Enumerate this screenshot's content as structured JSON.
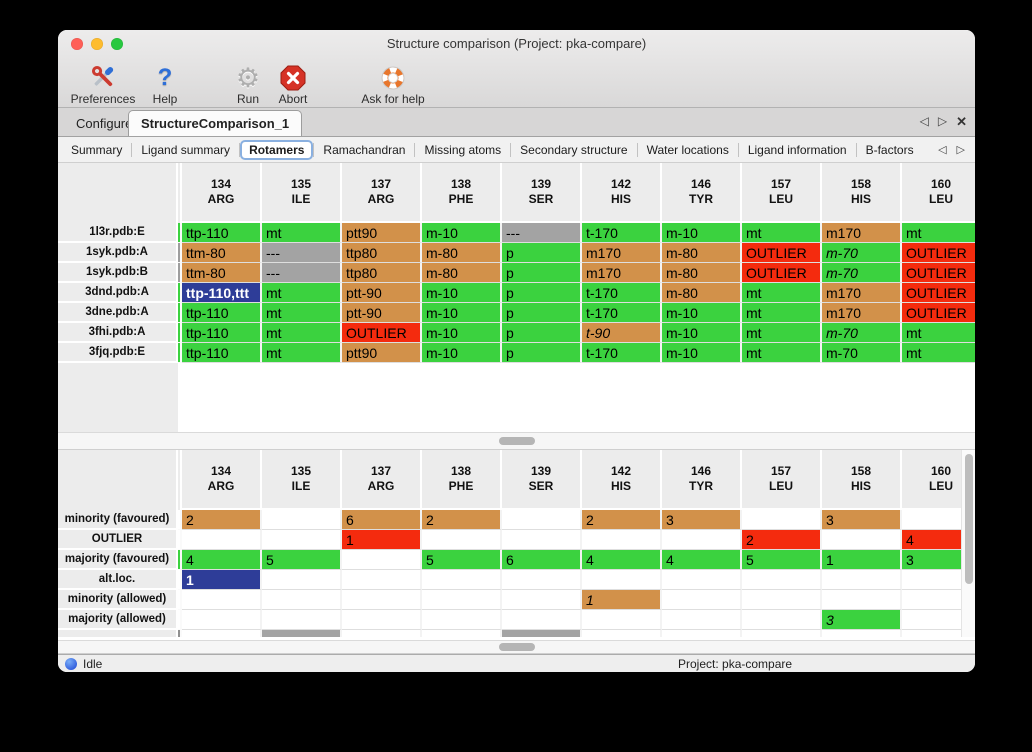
{
  "window": {
    "title": "Structure comparison (Project: pka-compare)"
  },
  "toolbar": {
    "items": [
      {
        "label": "Preferences",
        "icon": "tools-icon"
      },
      {
        "label": "Help",
        "icon": "question-icon"
      },
      {
        "label": "Run",
        "icon": "gear-icon"
      },
      {
        "label": "Abort",
        "icon": "stop-icon"
      },
      {
        "label": "Ask for help",
        "icon": "lifebuoy-icon"
      }
    ]
  },
  "tabs": {
    "items": [
      {
        "label": "Configure"
      },
      {
        "label": "StructureComparison_1"
      }
    ],
    "selected_index": 1,
    "prev_icon": "◁",
    "next_icon": "▷",
    "close_icon": "✕"
  },
  "subtabs": {
    "items": [
      "Summary",
      "Ligand summary",
      "Rotamers",
      "Ramachandran",
      "Missing atoms",
      "Secondary structure",
      "Water locations",
      "Ligand information",
      "B-factors"
    ],
    "selected_index": 2,
    "prev_icon": "◁",
    "next_icon": "▷"
  },
  "columns": [
    {
      "num": "134",
      "res": "ARG"
    },
    {
      "num": "135",
      "res": "ILE"
    },
    {
      "num": "137",
      "res": "ARG"
    },
    {
      "num": "138",
      "res": "PHE"
    },
    {
      "num": "139",
      "res": "SER"
    },
    {
      "num": "142",
      "res": "HIS"
    },
    {
      "num": "146",
      "res": "TYR"
    },
    {
      "num": "157",
      "res": "LEU"
    },
    {
      "num": "158",
      "res": "HIS"
    },
    {
      "num": "160",
      "res": "LEU"
    }
  ],
  "top_table": {
    "rows": [
      {
        "label": "1l3r.pdb:E",
        "strip": "green",
        "cells": [
          {
            "t": "ttp-110",
            "c": "green"
          },
          {
            "t": "mt",
            "c": "green"
          },
          {
            "t": "ptt90",
            "c": "tan"
          },
          {
            "t": "m-10",
            "c": "green"
          },
          {
            "t": "---",
            "c": "gray"
          },
          {
            "t": "t-170",
            "c": "green"
          },
          {
            "t": "m-10",
            "c": "green"
          },
          {
            "t": "mt",
            "c": "green"
          },
          {
            "t": "m170",
            "c": "tan"
          },
          {
            "t": "mt",
            "c": "green"
          }
        ]
      },
      {
        "label": "1syk.pdb:A",
        "strip": "gray",
        "cells": [
          {
            "t": "ttm-80",
            "c": "tan"
          },
          {
            "t": "---",
            "c": "gray"
          },
          {
            "t": "ttp80",
            "c": "tan"
          },
          {
            "t": "m-80",
            "c": "tan"
          },
          {
            "t": "p",
            "c": "green"
          },
          {
            "t": "m170",
            "c": "tan"
          },
          {
            "t": "m-80",
            "c": "tan"
          },
          {
            "t": "OUTLIER",
            "c": "red"
          },
          {
            "t": "m-70",
            "c": "green",
            "i": true
          },
          {
            "t": "OUTLIER",
            "c": "red"
          }
        ]
      },
      {
        "label": "1syk.pdb:B",
        "strip": "gray",
        "cells": [
          {
            "t": "ttm-80",
            "c": "tan"
          },
          {
            "t": "---",
            "c": "gray"
          },
          {
            "t": "ttp80",
            "c": "tan"
          },
          {
            "t": "m-80",
            "c": "tan"
          },
          {
            "t": "p",
            "c": "green"
          },
          {
            "t": "m170",
            "c": "tan"
          },
          {
            "t": "m-80",
            "c": "tan"
          },
          {
            "t": "OUTLIER",
            "c": "red"
          },
          {
            "t": "m-70",
            "c": "green",
            "i": true
          },
          {
            "t": "OUTLIER",
            "c": "red"
          }
        ]
      },
      {
        "label": "3dnd.pdb:A",
        "strip": "green",
        "cells": [
          {
            "t": "ttp-110,ttt",
            "c": "blue",
            "sel": true
          },
          {
            "t": "mt",
            "c": "green"
          },
          {
            "t": "ptt-90",
            "c": "tan"
          },
          {
            "t": "m-10",
            "c": "green"
          },
          {
            "t": "p",
            "c": "green"
          },
          {
            "t": "t-170",
            "c": "green"
          },
          {
            "t": "m-80",
            "c": "tan"
          },
          {
            "t": "mt",
            "c": "green"
          },
          {
            "t": "m170",
            "c": "tan"
          },
          {
            "t": "OUTLIER",
            "c": "red"
          }
        ]
      },
      {
        "label": "3dne.pdb:A",
        "strip": "green",
        "cells": [
          {
            "t": "ttp-110",
            "c": "green"
          },
          {
            "t": "mt",
            "c": "green"
          },
          {
            "t": "ptt-90",
            "c": "tan"
          },
          {
            "t": "m-10",
            "c": "green"
          },
          {
            "t": "p",
            "c": "green"
          },
          {
            "t": "t-170",
            "c": "green"
          },
          {
            "t": "m-10",
            "c": "green"
          },
          {
            "t": "mt",
            "c": "green"
          },
          {
            "t": "m170",
            "c": "tan"
          },
          {
            "t": "OUTLIER",
            "c": "red"
          }
        ]
      },
      {
        "label": "3fhi.pdb:A",
        "strip": "green",
        "cells": [
          {
            "t": "ttp-110",
            "c": "green"
          },
          {
            "t": "mt",
            "c": "green"
          },
          {
            "t": "OUTLIER",
            "c": "red"
          },
          {
            "t": "m-10",
            "c": "green"
          },
          {
            "t": "p",
            "c": "green"
          },
          {
            "t": "t-90",
            "c": "tan",
            "i": true
          },
          {
            "t": "m-10",
            "c": "green"
          },
          {
            "t": "mt",
            "c": "green"
          },
          {
            "t": "m-70",
            "c": "green",
            "i": true
          },
          {
            "t": "mt",
            "c": "green"
          }
        ]
      },
      {
        "label": "3fjq.pdb:E",
        "strip": "green",
        "cells": [
          {
            "t": "ttp-110",
            "c": "green"
          },
          {
            "t": "mt",
            "c": "green"
          },
          {
            "t": "ptt90",
            "c": "tan"
          },
          {
            "t": "m-10",
            "c": "green"
          },
          {
            "t": "p",
            "c": "green"
          },
          {
            "t": "t-170",
            "c": "green"
          },
          {
            "t": "m-10",
            "c": "green"
          },
          {
            "t": "mt",
            "c": "green"
          },
          {
            "t": "m-70",
            "c": "green"
          },
          {
            "t": "mt",
            "c": "green"
          }
        ]
      }
    ]
  },
  "bottom_table": {
    "rows": [
      {
        "label": "minority (favoured)",
        "strip": "white",
        "cells": [
          {
            "t": "2",
            "c": "tan"
          },
          {
            "t": "",
            "c": "white"
          },
          {
            "t": "6",
            "c": "tan"
          },
          {
            "t": "2",
            "c": "tan"
          },
          {
            "t": "",
            "c": "white"
          },
          {
            "t": "2",
            "c": "tan"
          },
          {
            "t": "3",
            "c": "tan"
          },
          {
            "t": "",
            "c": "white"
          },
          {
            "t": "3",
            "c": "tan"
          },
          {
            "t": "",
            "c": "white"
          }
        ]
      },
      {
        "label": "OUTLIER",
        "strip": "white",
        "cells": [
          {
            "t": "",
            "c": "white"
          },
          {
            "t": "",
            "c": "white"
          },
          {
            "t": "1",
            "c": "red"
          },
          {
            "t": "",
            "c": "white"
          },
          {
            "t": "",
            "c": "white"
          },
          {
            "t": "",
            "c": "white"
          },
          {
            "t": "",
            "c": "white"
          },
          {
            "t": "2",
            "c": "red"
          },
          {
            "t": "",
            "c": "white"
          },
          {
            "t": "4",
            "c": "red"
          }
        ]
      },
      {
        "label": "majority (favoured)",
        "strip": "green",
        "cells": [
          {
            "t": "4",
            "c": "green"
          },
          {
            "t": "5",
            "c": "green"
          },
          {
            "t": "",
            "c": "white"
          },
          {
            "t": "5",
            "c": "green"
          },
          {
            "t": "6",
            "c": "green"
          },
          {
            "t": "4",
            "c": "green"
          },
          {
            "t": "4",
            "c": "green"
          },
          {
            "t": "5",
            "c": "green"
          },
          {
            "t": "1",
            "c": "green"
          },
          {
            "t": "3",
            "c": "green"
          }
        ]
      },
      {
        "label": "alt.loc.",
        "strip": "white",
        "cells": [
          {
            "t": "1",
            "c": "blue",
            "sel": true
          },
          {
            "t": "",
            "c": "white"
          },
          {
            "t": "",
            "c": "white"
          },
          {
            "t": "",
            "c": "white"
          },
          {
            "t": "",
            "c": "white"
          },
          {
            "t": "",
            "c": "white"
          },
          {
            "t": "",
            "c": "white"
          },
          {
            "t": "",
            "c": "white"
          },
          {
            "t": "",
            "c": "white"
          },
          {
            "t": "",
            "c": "white"
          }
        ]
      },
      {
        "label": "minority (allowed)",
        "strip": "white",
        "cells": [
          {
            "t": "",
            "c": "white"
          },
          {
            "t": "",
            "c": "white"
          },
          {
            "t": "",
            "c": "white"
          },
          {
            "t": "",
            "c": "white"
          },
          {
            "t": "",
            "c": "white"
          },
          {
            "t": "1",
            "c": "tan",
            "i": true
          },
          {
            "t": "",
            "c": "white"
          },
          {
            "t": "",
            "c": "white"
          },
          {
            "t": "",
            "c": "white"
          },
          {
            "t": "",
            "c": "white"
          }
        ]
      },
      {
        "label": "majority (allowed)",
        "strip": "white",
        "cells": [
          {
            "t": "",
            "c": "white"
          },
          {
            "t": "",
            "c": "white"
          },
          {
            "t": "",
            "c": "white"
          },
          {
            "t": "",
            "c": "white"
          },
          {
            "t": "",
            "c": "white"
          },
          {
            "t": "",
            "c": "white"
          },
          {
            "t": "",
            "c": "white"
          },
          {
            "t": "",
            "c": "white"
          },
          {
            "t": "3",
            "c": "green",
            "i": true
          },
          {
            "t": "",
            "c": "white"
          }
        ]
      }
    ],
    "partial_row": {
      "label": "",
      "strip": "dark",
      "cells": [
        {
          "t": "",
          "c": "white"
        },
        {
          "t": "",
          "c": "gray"
        },
        {
          "t": "",
          "c": "white"
        },
        {
          "t": "",
          "c": "white"
        },
        {
          "t": "",
          "c": "gray"
        },
        {
          "t": "",
          "c": "white"
        },
        {
          "t": "",
          "c": "white"
        },
        {
          "t": "",
          "c": "white"
        },
        {
          "t": "",
          "c": "white"
        },
        {
          "t": "",
          "c": "white"
        }
      ]
    }
  },
  "statusbar": {
    "status": "Idle",
    "project": "Project: pka-compare"
  },
  "colors": {
    "green": "#3bd23f",
    "tan": "#d2914a",
    "red": "#f42b0e",
    "gray": "#a3a3a3",
    "blue": "#2e3d98",
    "strip_gray": "#9e9e9e"
  }
}
